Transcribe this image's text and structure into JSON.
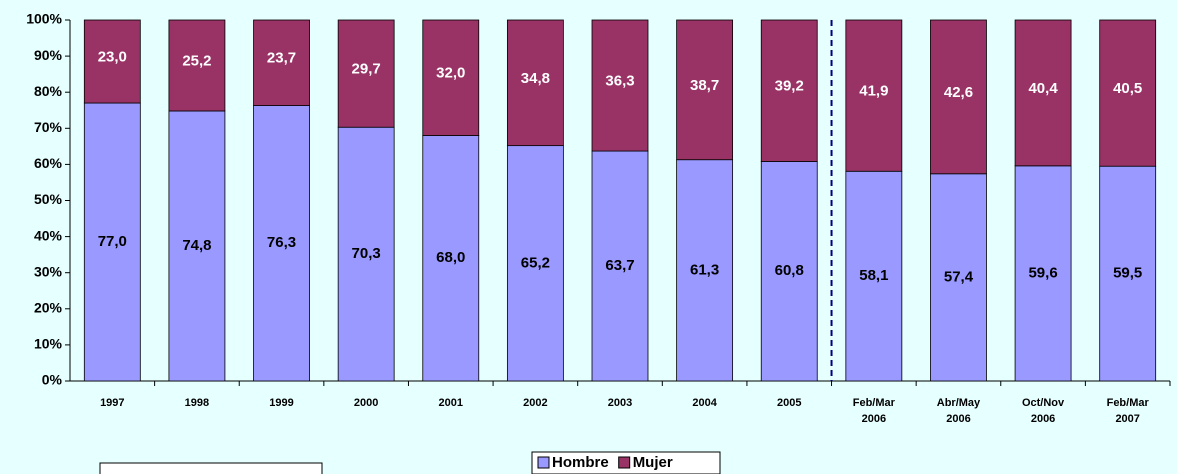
{
  "chart_data": {
    "type": "stacked-bar",
    "categories": [
      "1997",
      "1998",
      "1999",
      "2000",
      "2001",
      "2002",
      "2003",
      "2004",
      "2005",
      "Feb/Mar 2006",
      "Abr/May 2006",
      "Oct/Nov 2006",
      "Feb/Mar 2007"
    ],
    "series": [
      {
        "name": "Hombre",
        "color": "#9999ff",
        "values": [
          77.0,
          74.8,
          76.3,
          70.3,
          68.0,
          65.2,
          63.7,
          61.3,
          60.8,
          58.1,
          57.4,
          59.6,
          59.5
        ],
        "value_labels": [
          "77,0",
          "74,8",
          "76,3",
          "70,3",
          "68,0",
          "65,2",
          "63,7",
          "61,3",
          "60,8",
          "58,1",
          "57,4",
          "59,6",
          "59,5"
        ]
      },
      {
        "name": "Mujer",
        "color": "#993366",
        "values": [
          23.0,
          25.2,
          23.7,
          29.7,
          32.0,
          34.8,
          36.3,
          38.7,
          39.2,
          41.9,
          42.6,
          40.4,
          40.5
        ],
        "value_labels": [
          "23,0",
          "25,2",
          "23,7",
          "29,7",
          "32,0",
          "34,8",
          "36,3",
          "38,7",
          "39,2",
          "41,9",
          "42,6",
          "40,4",
          "40,5"
        ]
      }
    ],
    "ylim": [
      0,
      100
    ],
    "yticks": [
      {
        "value": 0,
        "label": "0%"
      },
      {
        "value": 10,
        "label": "10%"
      },
      {
        "value": 20,
        "label": "20%"
      },
      {
        "value": 30,
        "label": "30%"
      },
      {
        "value": 40,
        "label": "40%"
      },
      {
        "value": 50,
        "label": "50%"
      },
      {
        "value": 60,
        "label": "60%"
      },
      {
        "value": 70,
        "label": "70%"
      },
      {
        "value": 80,
        "label": "80%"
      },
      {
        "value": 90,
        "label": "90%"
      },
      {
        "value": 100,
        "label": "100%"
      }
    ],
    "legend": "bottom"
  }
}
